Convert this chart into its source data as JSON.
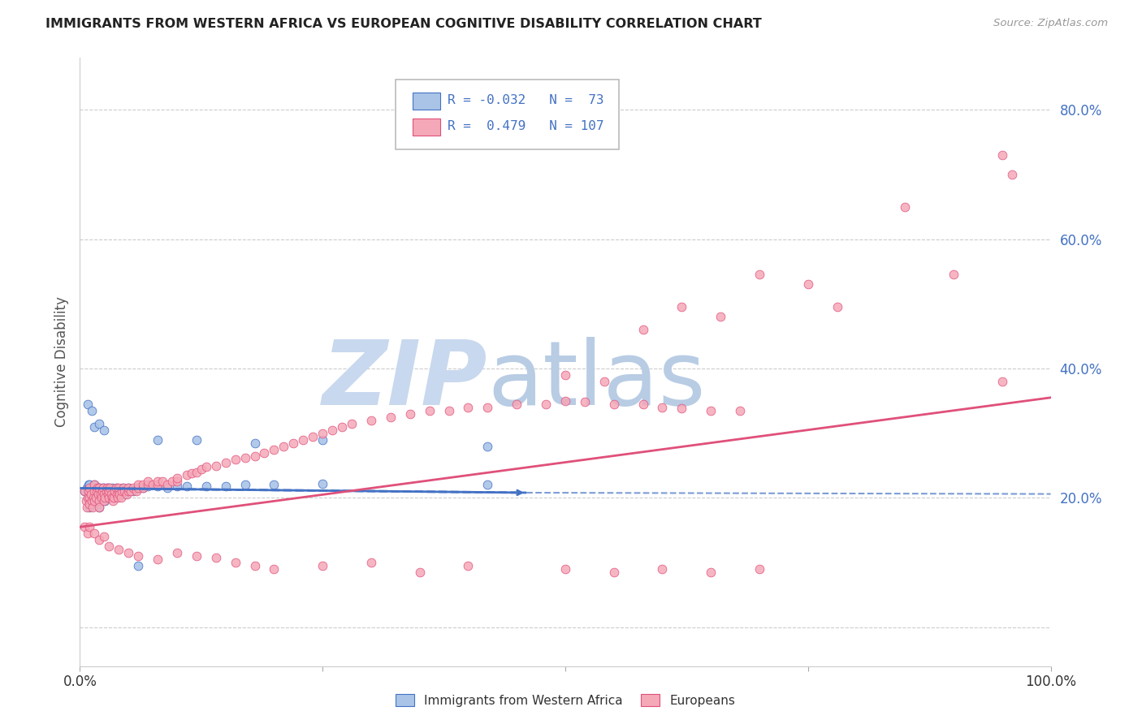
{
  "title": "IMMIGRANTS FROM WESTERN AFRICA VS EUROPEAN COGNITIVE DISABILITY CORRELATION CHART",
  "source": "Source: ZipAtlas.com",
  "ylabel": "Cognitive Disability",
  "yticks": [
    0.0,
    0.2,
    0.4,
    0.6,
    0.8
  ],
  "ytick_labels": [
    "",
    "20.0%",
    "40.0%",
    "60.0%",
    "80.0%"
  ],
  "xlim": [
    0.0,
    1.0
  ],
  "ylim": [
    -0.06,
    0.88
  ],
  "legend_R1": "-0.032",
  "legend_N1": "73",
  "legend_R2": "0.479",
  "legend_N2": "107",
  "color_blue": "#aac4e8",
  "color_pink": "#f5a8b8",
  "line_blue": "#4472c4",
  "line_pink": "#e0507a",
  "blue_line_x0": 0.0,
  "blue_line_x1": 0.46,
  "blue_line_y0": 0.215,
  "blue_line_y1": 0.208,
  "pink_line_x0": 0.0,
  "pink_line_x1": 1.0,
  "pink_line_y0": 0.155,
  "pink_line_y1": 0.355,
  "blue_x": [
    0.005,
    0.007,
    0.008,
    0.009,
    0.01,
    0.01,
    0.01,
    0.01,
    0.01,
    0.01,
    0.01,
    0.012,
    0.013,
    0.014,
    0.015,
    0.015,
    0.015,
    0.015,
    0.015,
    0.016,
    0.017,
    0.018,
    0.019,
    0.02,
    0.02,
    0.02,
    0.02,
    0.02,
    0.02,
    0.021,
    0.022,
    0.023,
    0.024,
    0.025,
    0.025,
    0.025,
    0.025,
    0.026,
    0.027,
    0.028,
    0.029,
    0.03,
    0.03,
    0.03,
    0.031,
    0.032,
    0.033,
    0.034,
    0.035,
    0.036,
    0.037,
    0.038,
    0.04,
    0.04,
    0.042,
    0.044,
    0.046,
    0.048,
    0.05,
    0.055,
    0.06,
    0.065,
    0.07,
    0.08,
    0.09,
    0.1,
    0.11,
    0.13,
    0.15,
    0.17,
    0.2,
    0.25,
    0.42
  ],
  "blue_y": [
    0.21,
    0.215,
    0.205,
    0.22,
    0.21,
    0.215,
    0.205,
    0.195,
    0.185,
    0.215,
    0.22,
    0.215,
    0.205,
    0.2,
    0.21,
    0.215,
    0.205,
    0.22,
    0.195,
    0.2,
    0.21,
    0.215,
    0.205,
    0.21,
    0.215,
    0.205,
    0.195,
    0.185,
    0.215,
    0.2,
    0.21,
    0.215,
    0.205,
    0.2,
    0.21,
    0.215,
    0.205,
    0.195,
    0.21,
    0.215,
    0.205,
    0.21,
    0.215,
    0.205,
    0.2,
    0.21,
    0.215,
    0.205,
    0.2,
    0.205,
    0.21,
    0.215,
    0.21,
    0.205,
    0.21,
    0.215,
    0.205,
    0.21,
    0.215,
    0.21,
    0.215,
    0.215,
    0.218,
    0.218,
    0.215,
    0.218,
    0.218,
    0.218,
    0.218,
    0.22,
    0.22,
    0.222,
    0.22
  ],
  "blue_outlier_x": [
    0.008,
    0.012,
    0.015,
    0.02,
    0.025,
    0.06,
    0.08,
    0.12,
    0.18,
    0.25,
    0.42
  ],
  "blue_outlier_y": [
    0.345,
    0.335,
    0.31,
    0.315,
    0.305,
    0.095,
    0.29,
    0.29,
    0.285,
    0.29,
    0.28
  ],
  "pink_x": [
    0.005,
    0.006,
    0.007,
    0.008,
    0.009,
    0.01,
    0.01,
    0.01,
    0.011,
    0.012,
    0.013,
    0.014,
    0.015,
    0.015,
    0.015,
    0.016,
    0.017,
    0.018,
    0.019,
    0.02,
    0.02,
    0.02,
    0.021,
    0.022,
    0.023,
    0.024,
    0.025,
    0.025,
    0.026,
    0.027,
    0.028,
    0.029,
    0.03,
    0.03,
    0.031,
    0.032,
    0.033,
    0.034,
    0.035,
    0.036,
    0.037,
    0.038,
    0.039,
    0.04,
    0.04,
    0.041,
    0.042,
    0.043,
    0.045,
    0.046,
    0.048,
    0.05,
    0.05,
    0.052,
    0.055,
    0.058,
    0.06,
    0.06,
    0.065,
    0.065,
    0.07,
    0.07,
    0.075,
    0.08,
    0.08,
    0.085,
    0.09,
    0.095,
    0.1,
    0.1,
    0.11,
    0.115,
    0.12,
    0.125,
    0.13,
    0.14,
    0.15,
    0.16,
    0.17,
    0.18,
    0.19,
    0.2,
    0.21,
    0.22,
    0.23,
    0.24,
    0.25,
    0.26,
    0.27,
    0.28,
    0.3,
    0.32,
    0.34,
    0.36,
    0.38,
    0.4,
    0.42,
    0.45,
    0.48,
    0.5,
    0.52,
    0.55,
    0.58,
    0.6,
    0.62,
    0.65,
    0.68
  ],
  "pink_y": [
    0.21,
    0.195,
    0.185,
    0.2,
    0.21,
    0.2,
    0.19,
    0.215,
    0.205,
    0.195,
    0.185,
    0.2,
    0.195,
    0.21,
    0.22,
    0.2,
    0.21,
    0.215,
    0.205,
    0.195,
    0.185,
    0.215,
    0.205,
    0.2,
    0.21,
    0.215,
    0.205,
    0.195,
    0.2,
    0.21,
    0.215,
    0.205,
    0.2,
    0.21,
    0.215,
    0.205,
    0.2,
    0.195,
    0.2,
    0.21,
    0.215,
    0.205,
    0.2,
    0.21,
    0.215,
    0.205,
    0.2,
    0.21,
    0.215,
    0.21,
    0.205,
    0.21,
    0.215,
    0.21,
    0.215,
    0.21,
    0.215,
    0.22,
    0.215,
    0.22,
    0.22,
    0.225,
    0.22,
    0.22,
    0.225,
    0.225,
    0.22,
    0.225,
    0.225,
    0.23,
    0.235,
    0.238,
    0.24,
    0.245,
    0.248,
    0.25,
    0.255,
    0.26,
    0.262,
    0.265,
    0.27,
    0.275,
    0.28,
    0.285,
    0.29,
    0.295,
    0.3,
    0.305,
    0.31,
    0.315,
    0.32,
    0.325,
    0.33,
    0.335,
    0.335,
    0.34,
    0.34,
    0.345,
    0.345,
    0.35,
    0.348,
    0.345,
    0.345,
    0.34,
    0.338,
    0.335,
    0.335
  ],
  "pink_low_x": [
    0.005,
    0.008,
    0.01,
    0.015,
    0.02,
    0.025,
    0.03,
    0.04,
    0.05,
    0.06,
    0.08,
    0.1,
    0.12,
    0.14,
    0.16,
    0.18,
    0.2,
    0.25,
    0.3,
    0.35,
    0.4,
    0.5,
    0.55,
    0.6,
    0.65,
    0.7
  ],
  "pink_low_y": [
    0.155,
    0.145,
    0.155,
    0.145,
    0.135,
    0.14,
    0.125,
    0.12,
    0.115,
    0.11,
    0.105,
    0.115,
    0.11,
    0.108,
    0.1,
    0.095,
    0.09,
    0.095,
    0.1,
    0.085,
    0.095,
    0.09,
    0.085,
    0.09,
    0.085,
    0.09
  ],
  "pink_high_x": [
    0.5,
    0.54,
    0.58,
    0.62,
    0.66,
    0.7,
    0.75,
    0.78,
    0.85,
    0.9,
    0.95,
    0.96
  ],
  "pink_high_y": [
    0.39,
    0.38,
    0.46,
    0.495,
    0.48,
    0.545,
    0.53,
    0.495,
    0.65,
    0.545,
    0.38,
    0.7
  ],
  "pink_very_high_x": [
    0.95
  ],
  "pink_very_high_y": [
    0.73
  ]
}
